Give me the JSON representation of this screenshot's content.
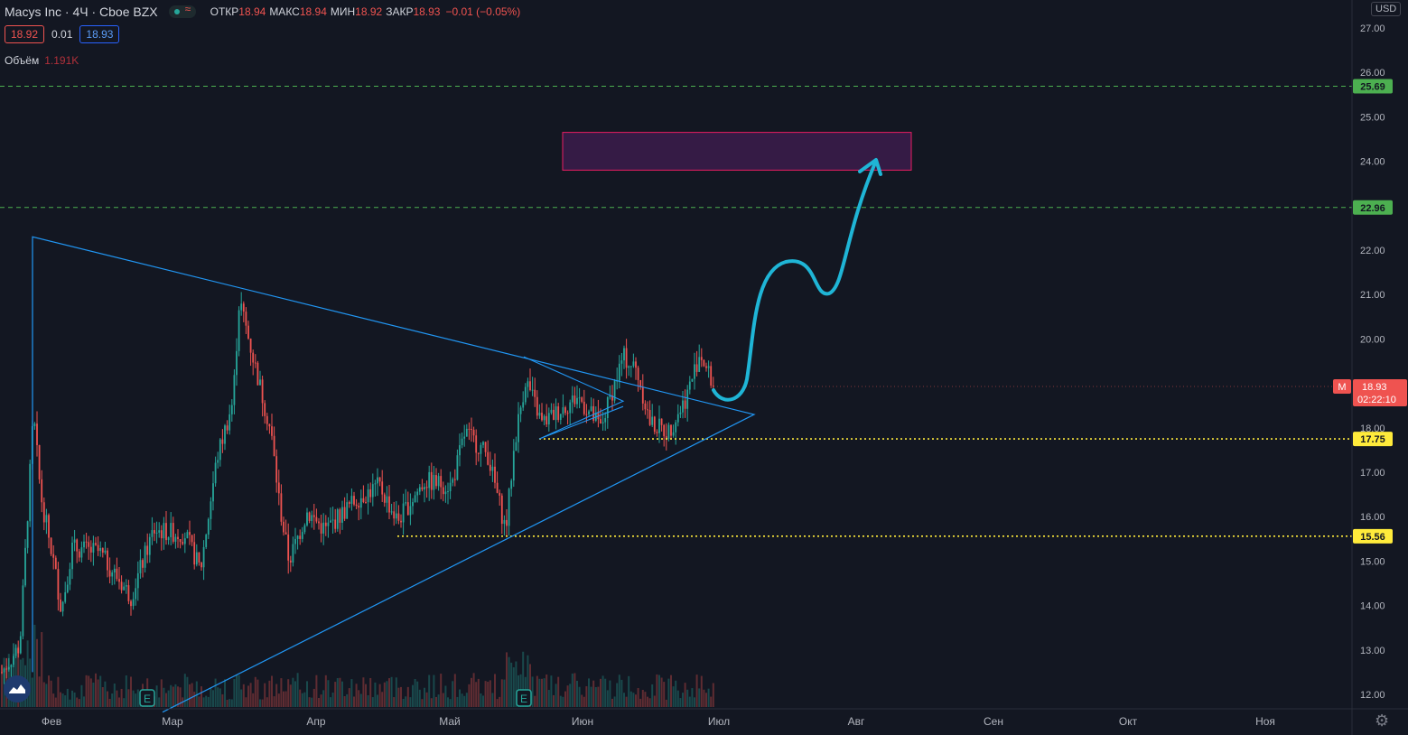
{
  "header": {
    "title": "Macys Inc · 4Ч · Cboe BZX",
    "open_label": "ОТКР",
    "open": "18.94",
    "high_label": "МАКС",
    "high": "18.94",
    "low_label": "МИН",
    "low": "18.92",
    "close_label": "ЗАКР",
    "close": "18.93",
    "change": "−0.01 (−0.05%)"
  },
  "quote": {
    "bid": "18.92",
    "spread": "0.01",
    "ask": "18.93"
  },
  "volume": {
    "label": "Объём",
    "value": "1.191K"
  },
  "currency": "USD",
  "icons": {
    "settings": "gear-icon",
    "logo": "tradingview-logo-icon",
    "earnings": "earnings-marker-icon"
  },
  "chart_data": {
    "type": "candlestick",
    "y_range": [
      11.8,
      27.4
    ],
    "y_ticks": [
      "27.00",
      "26.00",
      "25.00",
      "24.00",
      "22.00",
      "21.00",
      "20.00",
      "18.00",
      "17.00",
      "16.00",
      "15.00",
      "14.00",
      "13.00",
      "12.00"
    ],
    "x_labels": [
      "Фев",
      "Мар",
      "Апр",
      "Май",
      "Июн",
      "Июл",
      "Авг",
      "Сен",
      "Окт",
      "Ноя"
    ],
    "price_lines": [
      {
        "value": 25.69,
        "label": "25.69",
        "color": "#4caf50",
        "style": "dashed"
      },
      {
        "value": 22.96,
        "label": "22.96",
        "color": "#4caf50",
        "style": "dashed"
      },
      {
        "value": 17.75,
        "label": "17.75",
        "color": "#ffeb3b",
        "style": "dotted"
      },
      {
        "value": 15.56,
        "label": "15.56",
        "color": "#ffeb3b",
        "style": "dotted"
      }
    ],
    "last_price": {
      "value": 18.93,
      "label": "18.93",
      "countdown": "02:22:10",
      "marker": "M"
    },
    "target_zone": {
      "y_top": 24.65,
      "y_bottom": 23.8
    },
    "earnings_markers": [
      "E",
      "E"
    ],
    "key_prices": [
      {
        "date_month": "Фев",
        "value": 12.4
      },
      {
        "date_month": "Фев",
        "value": 22.3
      },
      {
        "date_month": "Мар",
        "value": 21.1
      },
      {
        "date_month": "Апр",
        "value": 14.8
      },
      {
        "date_month": "Май",
        "value": 15.56
      },
      {
        "date_month": "Май",
        "value": 19.6
      },
      {
        "date_month": "Июн",
        "value": 20.4
      },
      {
        "date_month": "Июн",
        "value": 17.6
      },
      {
        "date_month": "Июл",
        "value": 18.93
      }
    ],
    "colors": {
      "up": "#26a69a",
      "down": "#ef5350",
      "background": "#131722",
      "trendline": "#2196f3",
      "arrow": "#1fb5d6",
      "zone": "#e91e63"
    }
  }
}
